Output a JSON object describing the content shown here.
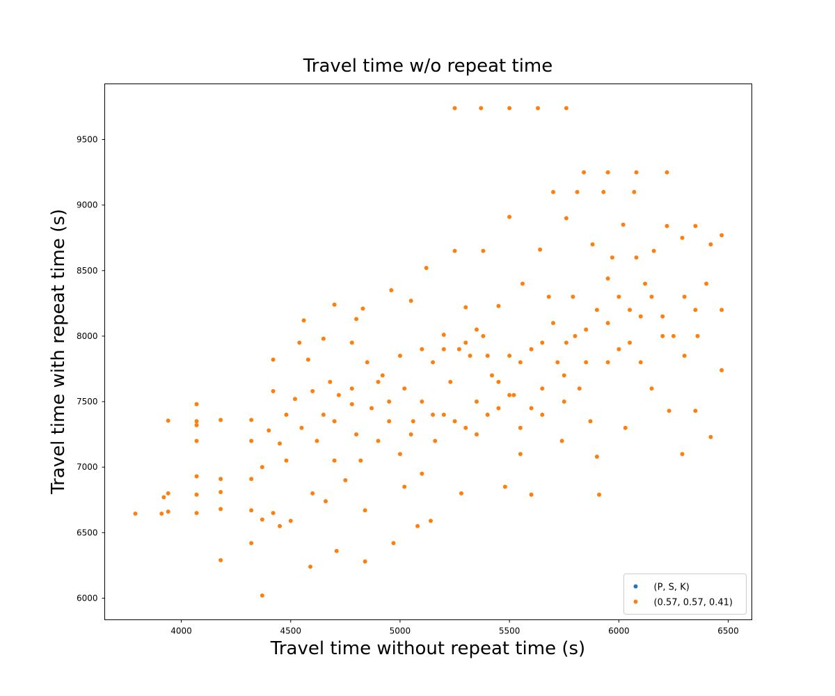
{
  "chart_data": {
    "type": "scatter",
    "title": "Travel time w/o repeat time",
    "x_label": "Travel time without repeat time (s)",
    "y_label": "Travel time with repeat time (s)",
    "xlim": [
      3650,
      6608
    ],
    "ylim": [
      5835,
      9925
    ],
    "xticks": [
      4000,
      4500,
      5000,
      5500,
      6000,
      6500
    ],
    "yticks": [
      6000,
      6500,
      7000,
      7500,
      8000,
      8500,
      9000,
      9500
    ],
    "legend": "lower right",
    "series": [
      {
        "name": "(P, S, K)",
        "color": "#1f77b4",
        "x": [],
        "values": []
      },
      {
        "name": "(0.57, 0.57, 0.41)",
        "color": "#ff7f0e",
        "x": [
          3790,
          3910,
          3920,
          3940,
          3940,
          3940,
          4070,
          4070,
          4070,
          4070,
          4070,
          4070,
          4070,
          4180,
          4180,
          4180,
          4180,
          4180,
          4320,
          4320,
          4320,
          4320,
          4320,
          4370,
          4370,
          4370,
          4400,
          4420,
          4420,
          4420,
          4450,
          4450,
          4480,
          4480,
          4500,
          4520,
          4540,
          4550,
          4560,
          4580,
          4590,
          4600,
          4600,
          4620,
          4650,
          4650,
          4660,
          4680,
          4700,
          4700,
          4710,
          4720,
          4750,
          4780,
          4780,
          4780,
          4800,
          4800,
          4820,
          4830,
          4840,
          4840,
          4870,
          4900,
          4920,
          4950,
          4960,
          4970,
          5000,
          5000,
          5020,
          5020,
          5050,
          5060,
          5080,
          5100,
          5100,
          5100,
          5120,
          5140,
          5150,
          5160,
          5200,
          5200,
          5230,
          5250,
          5250,
          5270,
          5280,
          5300,
          5300,
          5320,
          5350,
          5370,
          5380,
          5380,
          5400,
          5420,
          5450,
          5480,
          5500,
          5500,
          5500,
          5520,
          5550,
          5560,
          5600,
          5600,
          5630,
          5640,
          5650,
          5680,
          5700,
          5720,
          5740,
          5760,
          5760,
          5760,
          5790,
          5810,
          5820,
          5840,
          5850,
          5870,
          5880,
          5900,
          5910,
          5930,
          5950,
          5950,
          5950,
          5970,
          6000,
          6020,
          6030,
          6050,
          6070,
          6080,
          6080,
          6100,
          6120,
          6150,
          6160,
          6200,
          6220,
          6220,
          6230,
          6290,
          6290,
          6300,
          6350,
          6350,
          6360,
          6400,
          6420,
          6420,
          6470,
          6470,
          6470,
          5200,
          5300,
          5350,
          5400,
          5450,
          5500,
          5550,
          5600,
          5650,
          5700,
          5750,
          5800,
          5850,
          5900,
          5950,
          6000,
          6050,
          6100,
          6150,
          6200,
          6250,
          6300,
          6350,
          5150,
          5250,
          5350,
          5450,
          5550,
          5650,
          5750,
          4900,
          4950,
          5050,
          4850,
          4700
        ],
        "values": [
          6645,
          6645,
          6770,
          6800,
          7355,
          6660,
          6650,
          6930,
          7200,
          7480,
          7320,
          7350,
          6790,
          6290,
          6910,
          7360,
          6810,
          6680,
          6420,
          6910,
          7200,
          7360,
          6670,
          6020,
          7000,
          6600,
          7280,
          7820,
          7580,
          6650,
          7180,
          6550,
          7400,
          7050,
          6590,
          7520,
          7950,
          7300,
          8120,
          7820,
          6240,
          7580,
          6800,
          7200,
          7400,
          7980,
          6740,
          7650,
          7050,
          8240,
          6360,
          7550,
          6900,
          7950,
          7600,
          7480,
          7250,
          8130,
          7050,
          8210,
          6280,
          6670,
          7450,
          7200,
          7700,
          7500,
          8350,
          6420,
          7850,
          7100,
          7600,
          6850,
          8270,
          7350,
          6550,
          7900,
          7500,
          6950,
          8520,
          6590,
          7800,
          7200,
          8010,
          7400,
          7650,
          9740,
          8650,
          7900,
          6800,
          8220,
          7300,
          7850,
          7500,
          9740,
          8650,
          8000,
          7400,
          7700,
          8230,
          6850,
          9740,
          8910,
          7850,
          7550,
          7100,
          8400,
          6790,
          7900,
          9740,
          8660,
          7600,
          8300,
          9100,
          7800,
          7200,
          9740,
          8900,
          7950,
          8300,
          9100,
          7600,
          9250,
          8050,
          7350,
          8700,
          7080,
          6790,
          9100,
          9250,
          8440,
          7800,
          8600,
          7900,
          8850,
          7300,
          8200,
          9100,
          9250,
          8600,
          7800,
          8400,
          7600,
          8650,
          8000,
          9250,
          8840,
          7430,
          7100,
          8750,
          8300,
          8840,
          7430,
          8000,
          8400,
          7230,
          8700,
          8770,
          7740,
          8200,
          7900,
          7950,
          8050,
          7850,
          7650,
          7550,
          7800,
          7450,
          7950,
          8100,
          7700,
          8000,
          7800,
          8200,
          8100,
          8300,
          7950,
          8150,
          8300,
          8150,
          8000,
          7850,
          8200,
          7400,
          7350,
          7250,
          7450,
          7300,
          7400,
          7500,
          7650,
          7350,
          7250,
          7800,
          7350
        ]
      }
    ]
  }
}
